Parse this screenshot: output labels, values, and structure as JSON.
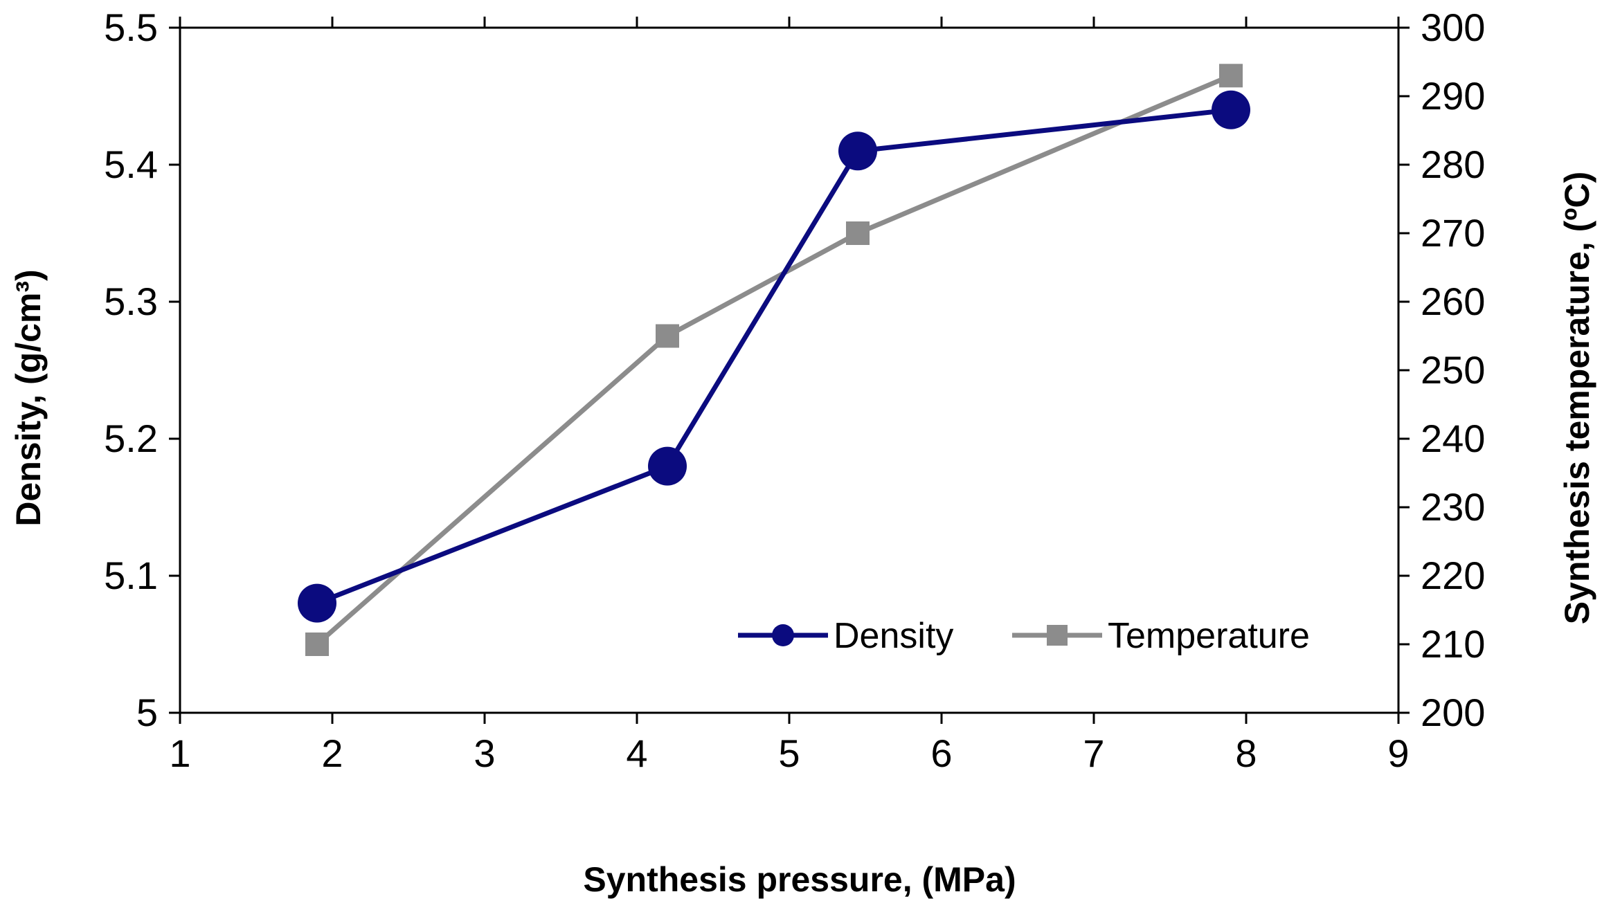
{
  "chart_data": {
    "type": "line",
    "title": "",
    "xlabel": "Synthesis pressure, (MPa)",
    "ylabel": "Density, (g/cm³)",
    "y2label": "Synthesis temperature, (ºC)",
    "xlim": [
      1,
      9
    ],
    "ylim": [
      5,
      5.5
    ],
    "y2lim": [
      200,
      300
    ],
    "xticks": [
      "1",
      "2",
      "3",
      "4",
      "5",
      "6",
      "7",
      "8",
      "9"
    ],
    "yticks": [
      "5",
      "5.1",
      "5.2",
      "5.3",
      "5.4",
      "5.5"
    ],
    "y2ticks": [
      "200",
      "210",
      "220",
      "230",
      "240",
      "250",
      "260",
      "270",
      "280",
      "290",
      "300"
    ],
    "grid": false,
    "legend_position": "bottom-right",
    "series": [
      {
        "name": "Density",
        "axis": "left",
        "marker": "circle",
        "color": "#0B0B7F",
        "x": [
          1.9,
          4.2,
          5.45,
          7.9
        ],
        "values": [
          5.08,
          5.18,
          5.41,
          5.44
        ]
      },
      {
        "name": "Temperature",
        "axis": "right",
        "marker": "square",
        "color": "#8C8C8C",
        "x": [
          1.9,
          4.2,
          5.45,
          7.9
        ],
        "values": [
          210,
          255,
          270,
          293
        ]
      }
    ]
  }
}
